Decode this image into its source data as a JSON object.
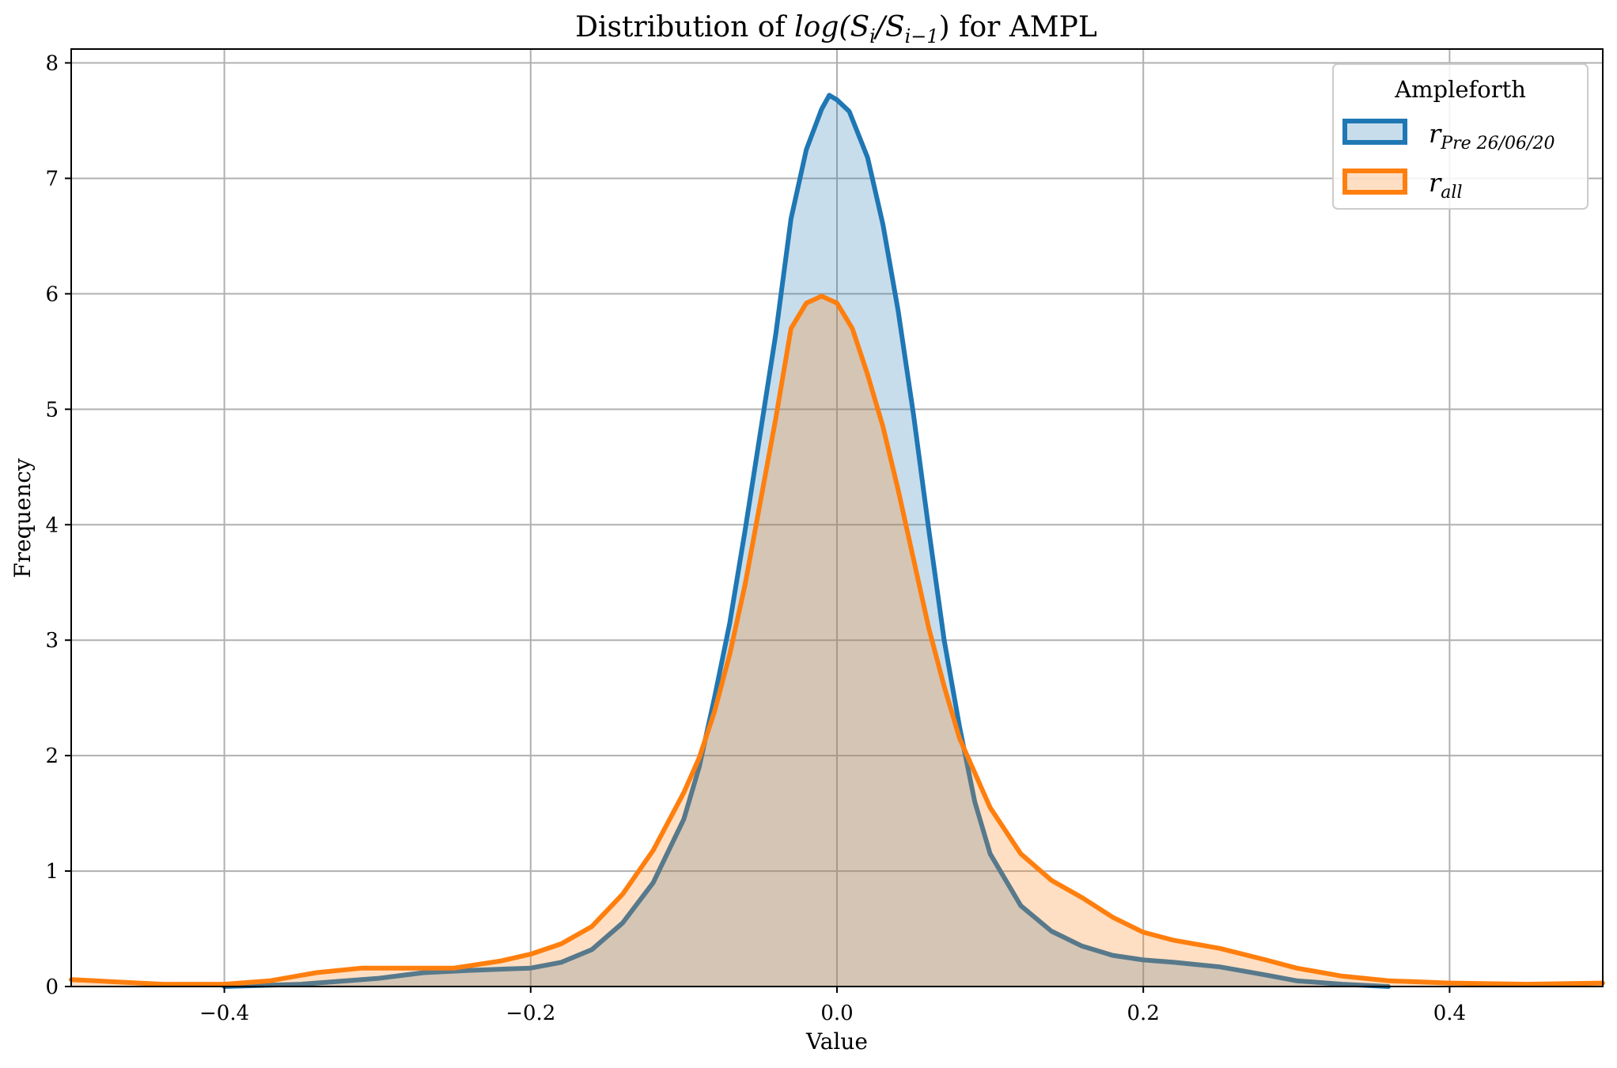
{
  "chart_data": {
    "type": "area",
    "title": {
      "prefix": "Distribution of ",
      "math_main": "log",
      "math_open": "(S",
      "sub1": "i",
      "math_mid": "/S",
      "sub2": "i−1",
      "math_close": ")",
      "suffix": " for AMPL"
    },
    "xlabel": "Value",
    "ylabel": "Frequency",
    "xlim": [
      -0.5,
      0.5
    ],
    "ylim": [
      0,
      8.12
    ],
    "xticks": [
      {
        "value": -0.4,
        "label": "−0.4"
      },
      {
        "value": -0.2,
        "label": "−0.2"
      },
      {
        "value": 0.0,
        "label": "0.0"
      },
      {
        "value": 0.2,
        "label": "0.2"
      },
      {
        "value": 0.4,
        "label": "0.4"
      }
    ],
    "yticks": [
      {
        "value": 0,
        "label": "0"
      },
      {
        "value": 1,
        "label": "1"
      },
      {
        "value": 2,
        "label": "2"
      },
      {
        "value": 3,
        "label": "3"
      },
      {
        "value": 4,
        "label": "4"
      },
      {
        "value": 5,
        "label": "5"
      },
      {
        "value": 6,
        "label": "6"
      },
      {
        "value": 7,
        "label": "7"
      },
      {
        "value": 8,
        "label": "8"
      }
    ],
    "grid": true,
    "legend": {
      "title": "Ampleforth",
      "placement": "top-right"
    },
    "series": [
      {
        "name": "r_Pre 26/06/20",
        "label_main": "r",
        "label_sub": "Pre 26/06/20",
        "color": "#1f77b4",
        "fill_opacity": 0.25,
        "points": [
          [
            -0.4,
            0.0
          ],
          [
            -0.35,
            0.02
          ],
          [
            -0.3,
            0.07
          ],
          [
            -0.27,
            0.12
          ],
          [
            -0.24,
            0.14
          ],
          [
            -0.2,
            0.16
          ],
          [
            -0.18,
            0.21
          ],
          [
            -0.16,
            0.32
          ],
          [
            -0.14,
            0.55
          ],
          [
            -0.12,
            0.9
          ],
          [
            -0.1,
            1.45
          ],
          [
            -0.09,
            1.9
          ],
          [
            -0.08,
            2.5
          ],
          [
            -0.07,
            3.15
          ],
          [
            -0.06,
            3.95
          ],
          [
            -0.05,
            4.8
          ],
          [
            -0.04,
            5.65
          ],
          [
            -0.03,
            6.65
          ],
          [
            -0.02,
            7.25
          ],
          [
            -0.01,
            7.6
          ],
          [
            -0.005,
            7.72
          ],
          [
            0.0,
            7.68
          ],
          [
            0.008,
            7.58
          ],
          [
            0.02,
            7.18
          ],
          [
            0.03,
            6.6
          ],
          [
            0.04,
            5.85
          ],
          [
            0.05,
            4.95
          ],
          [
            0.06,
            3.95
          ],
          [
            0.07,
            3.0
          ],
          [
            0.08,
            2.25
          ],
          [
            0.09,
            1.6
          ],
          [
            0.1,
            1.15
          ],
          [
            0.12,
            0.7
          ],
          [
            0.14,
            0.48
          ],
          [
            0.16,
            0.35
          ],
          [
            0.18,
            0.27
          ],
          [
            0.2,
            0.23
          ],
          [
            0.22,
            0.21
          ],
          [
            0.25,
            0.17
          ],
          [
            0.28,
            0.1
          ],
          [
            0.3,
            0.05
          ],
          [
            0.33,
            0.02
          ],
          [
            0.36,
            0.0
          ]
        ]
      },
      {
        "name": "r_all",
        "label_main": "r",
        "label_sub": "all",
        "color": "#ff7f0e",
        "fill_opacity": 0.25,
        "points": [
          [
            -0.5,
            0.06
          ],
          [
            -0.47,
            0.04
          ],
          [
            -0.44,
            0.02
          ],
          [
            -0.4,
            0.02
          ],
          [
            -0.37,
            0.05
          ],
          [
            -0.34,
            0.12
          ],
          [
            -0.31,
            0.16
          ],
          [
            -0.28,
            0.16
          ],
          [
            -0.25,
            0.16
          ],
          [
            -0.22,
            0.22
          ],
          [
            -0.2,
            0.28
          ],
          [
            -0.18,
            0.37
          ],
          [
            -0.16,
            0.52
          ],
          [
            -0.14,
            0.8
          ],
          [
            -0.12,
            1.18
          ],
          [
            -0.1,
            1.68
          ],
          [
            -0.09,
            1.98
          ],
          [
            -0.08,
            2.38
          ],
          [
            -0.07,
            2.88
          ],
          [
            -0.06,
            3.48
          ],
          [
            -0.05,
            4.2
          ],
          [
            -0.04,
            4.92
          ],
          [
            -0.03,
            5.7
          ],
          [
            -0.02,
            5.92
          ],
          [
            -0.01,
            5.98
          ],
          [
            0.0,
            5.92
          ],
          [
            0.01,
            5.7
          ],
          [
            0.02,
            5.3
          ],
          [
            0.03,
            4.85
          ],
          [
            0.04,
            4.3
          ],
          [
            0.05,
            3.7
          ],
          [
            0.06,
            3.1
          ],
          [
            0.07,
            2.6
          ],
          [
            0.08,
            2.15
          ],
          [
            0.1,
            1.55
          ],
          [
            0.12,
            1.15
          ],
          [
            0.14,
            0.92
          ],
          [
            0.16,
            0.77
          ],
          [
            0.18,
            0.6
          ],
          [
            0.2,
            0.47
          ],
          [
            0.22,
            0.4
          ],
          [
            0.25,
            0.33
          ],
          [
            0.28,
            0.23
          ],
          [
            0.3,
            0.16
          ],
          [
            0.33,
            0.09
          ],
          [
            0.36,
            0.05
          ],
          [
            0.4,
            0.03
          ],
          [
            0.45,
            0.02
          ],
          [
            0.5,
            0.03
          ]
        ]
      }
    ]
  }
}
